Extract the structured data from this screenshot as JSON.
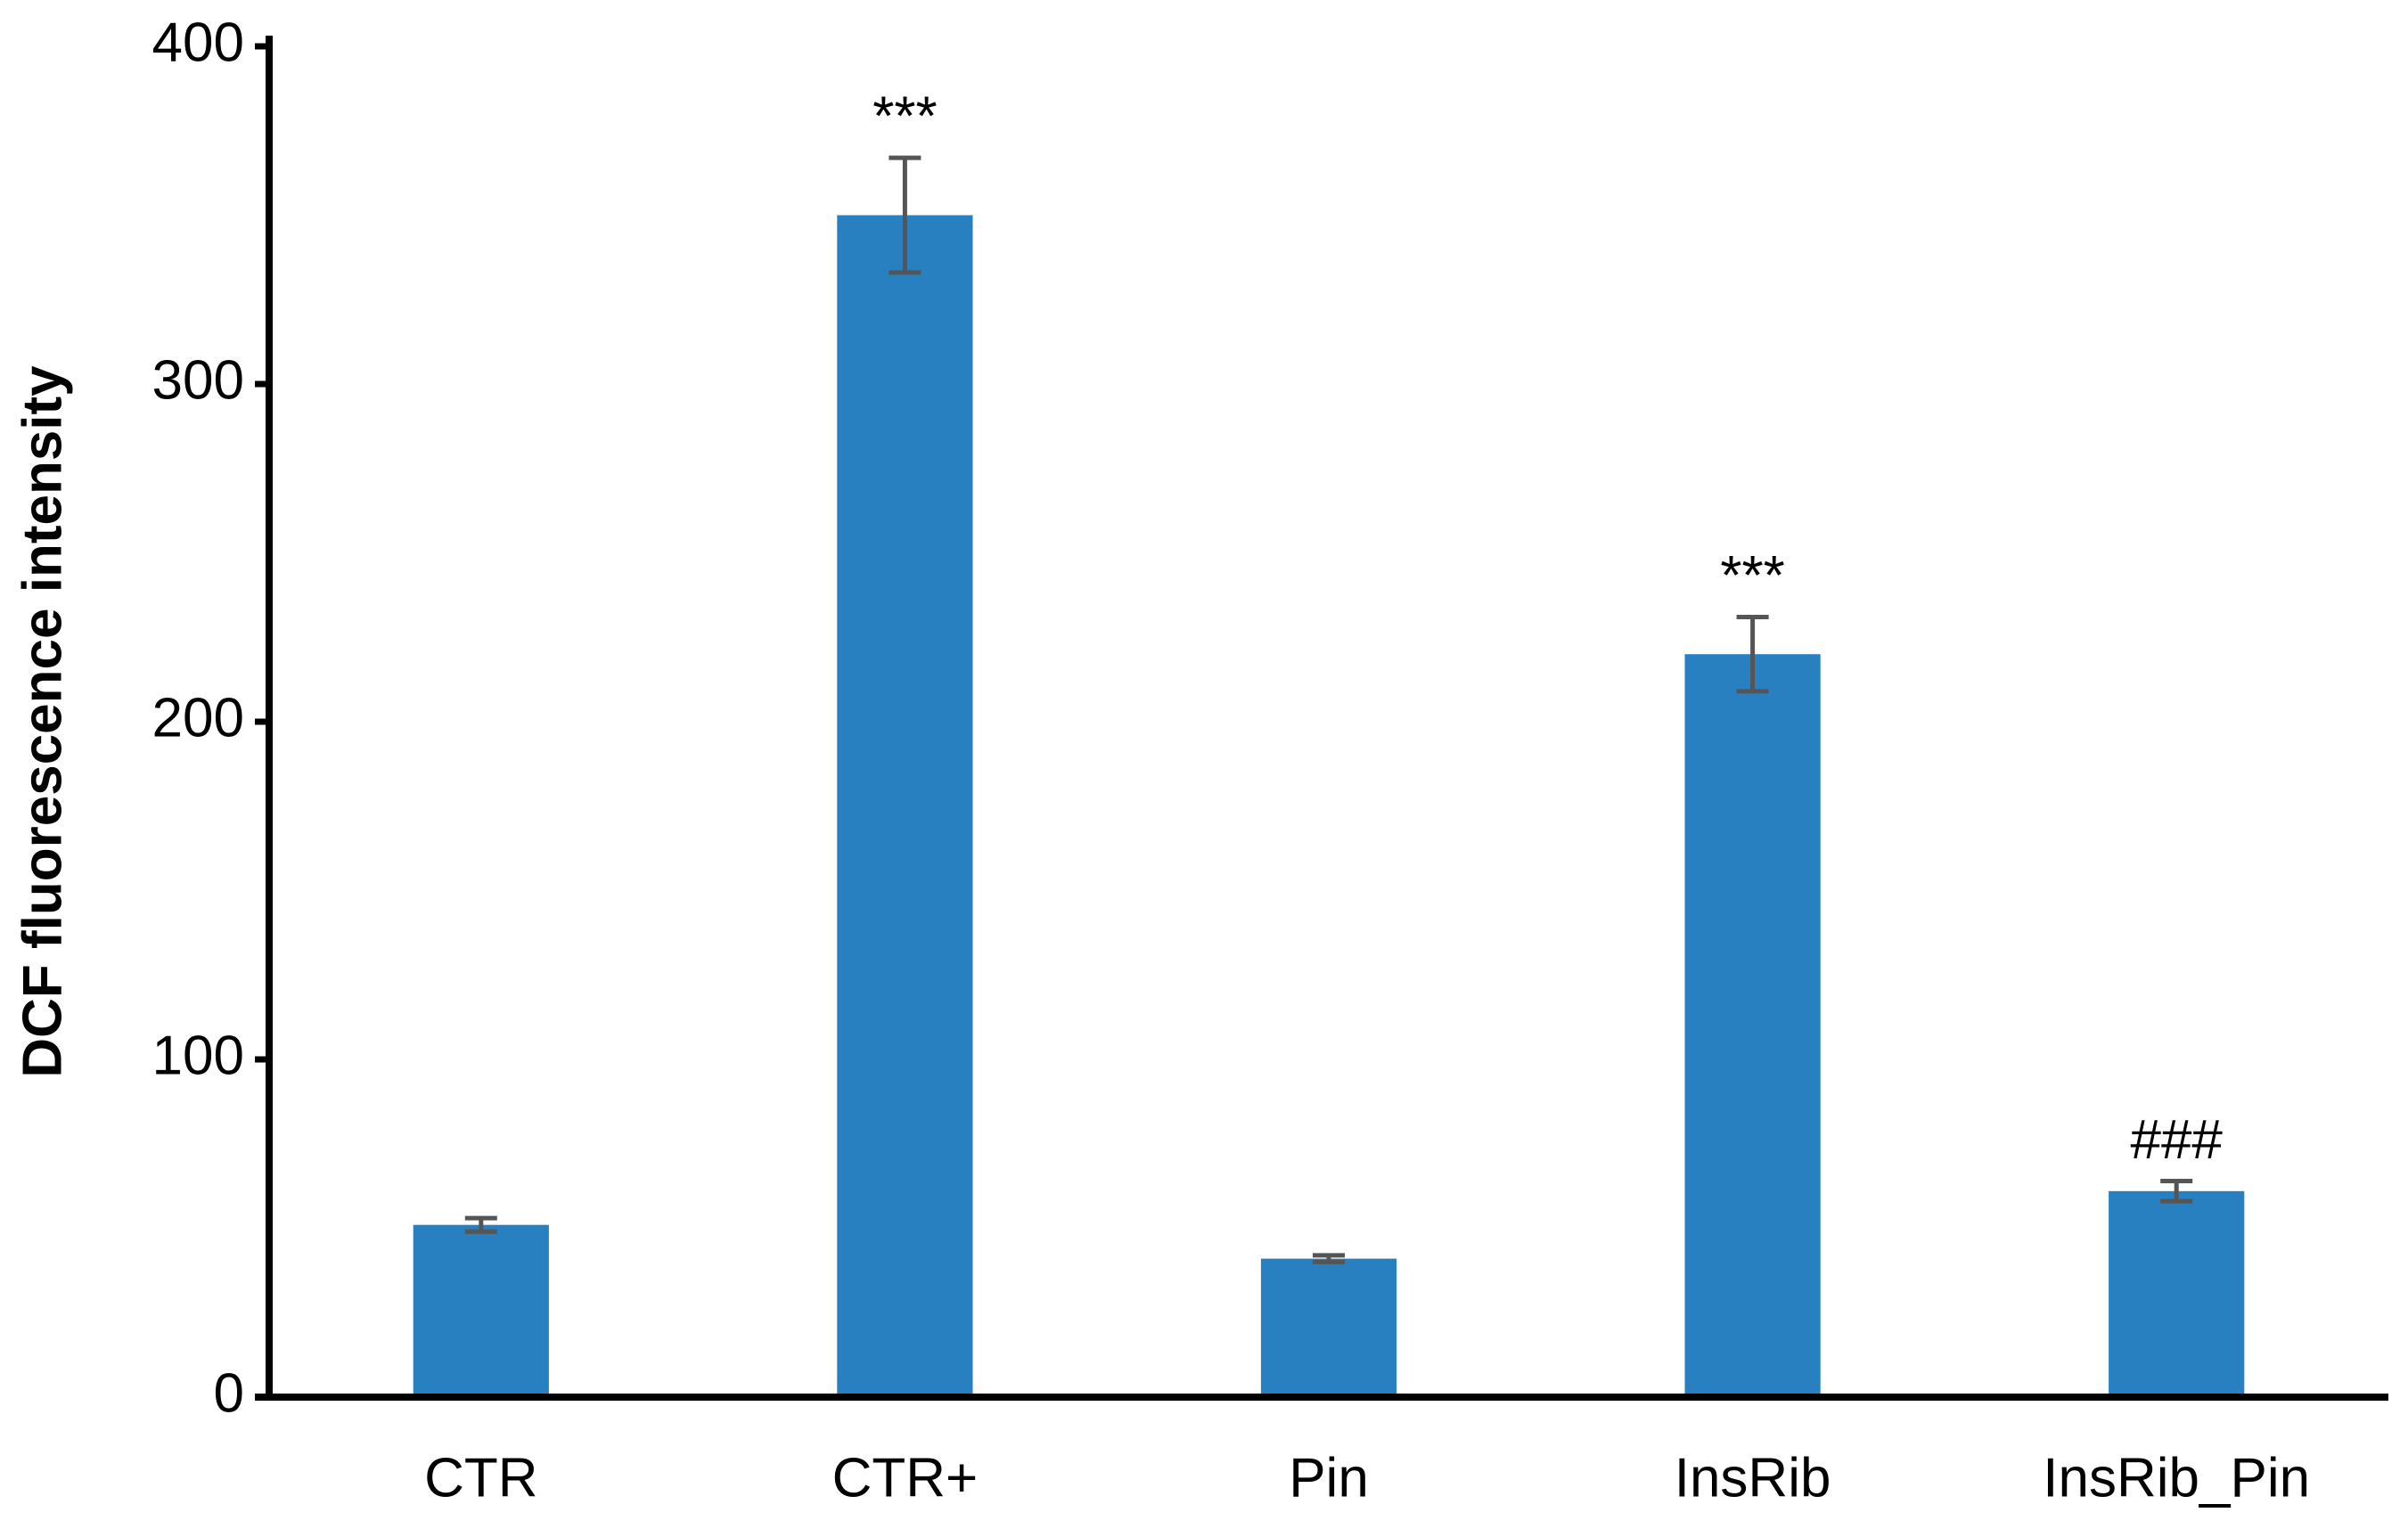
{
  "chart_data": {
    "type": "bar",
    "y_label": "DCF fluorescence intensity",
    "categories": [
      "CTR",
      "CTR+",
      "Pin",
      "InsRib",
      "InsRib_Pin"
    ],
    "values": [
      51,
      350,
      41,
      220,
      61
    ],
    "errors": [
      2,
      17,
      1,
      11,
      3
    ],
    "significance": [
      null,
      "***",
      null,
      "***",
      "###"
    ],
    "color": "#2980c0",
    "error_color": "#555555",
    "ylim": [
      0,
      400
    ],
    "yticks": [
      0,
      100,
      200,
      300,
      400
    ],
    "grid": false
  }
}
